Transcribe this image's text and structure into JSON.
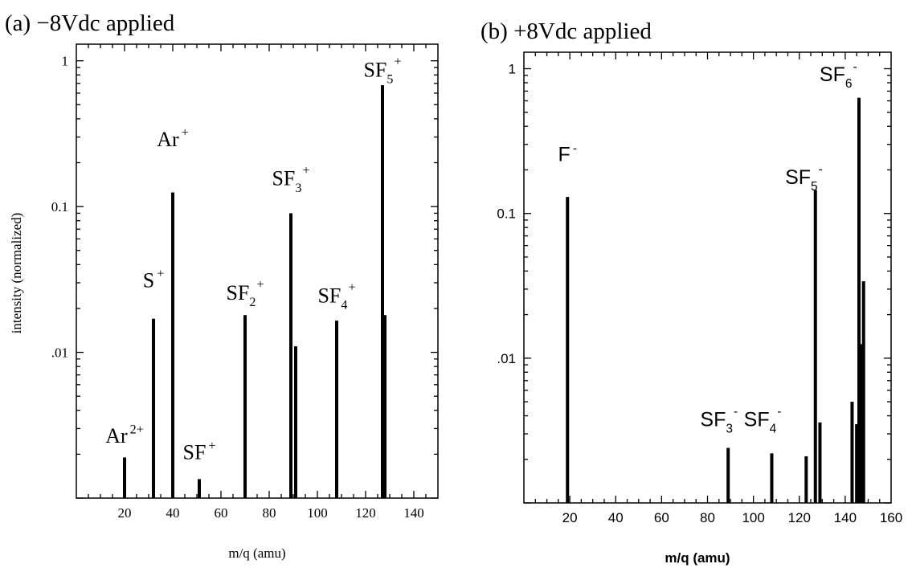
{
  "chart_data": [
    {
      "type": "bar",
      "title": "(a) −8Vdc applied",
      "xlabel": "m/q (amu)",
      "ylabel": "intensity (normalized)",
      "xlim": [
        0,
        150
      ],
      "ylim": [
        0.001,
        1.3
      ],
      "yscale": "log",
      "x_ticks": [
        "20",
        "40",
        "60",
        "80",
        "100",
        "120",
        "140"
      ],
      "y_ticks": [
        {
          "v": 1,
          "label": "1"
        },
        {
          "v": 0.1,
          "label": "0.1"
        },
        {
          "v": 0.01,
          "label": ".01"
        }
      ],
      "x": [
        20,
        32,
        40,
        51,
        70,
        89,
        91,
        108,
        127,
        128
      ],
      "values": [
        0.0019,
        0.017,
        0.125,
        0.00135,
        0.018,
        0.09,
        0.011,
        0.0165,
        0.68,
        0.018
      ],
      "annotations": [
        {
          "text": "Ar",
          "sup": "2+",
          "x": 20,
          "y": 0.0024
        },
        {
          "text": "S",
          "sup": "+",
          "x": 32,
          "y": 0.028
        },
        {
          "text": "Ar",
          "sup": "+",
          "x": 40,
          "y": 0.26
        },
        {
          "text": "SF",
          "sup": "+",
          "x": 51,
          "y": 0.00185
        },
        {
          "text": "SF",
          "sub": "2",
          "sup": "+",
          "x": 70,
          "y": 0.023
        },
        {
          "text": "SF",
          "sub": "3",
          "sup": "+",
          "x": 89,
          "y": 0.14
        },
        {
          "text": "SF",
          "sub": "4",
          "sup": "+",
          "x": 108,
          "y": 0.022
        },
        {
          "text": "SF",
          "sub": "5",
          "sup": "+",
          "x": 127,
          "y": 0.78
        }
      ]
    },
    {
      "type": "bar",
      "title": "(b) +8Vdc applied",
      "xlabel": "m/q (amu)",
      "ylabel": "",
      "xlim": [
        0,
        160
      ],
      "ylim": [
        0.001,
        1.3
      ],
      "yscale": "log",
      "x_ticks": [
        "20",
        "40",
        "60",
        "80",
        "100",
        "120",
        "140",
        "160"
      ],
      "y_ticks": [
        {
          "v": 1,
          "label": "1"
        },
        {
          "v": 0.1,
          "label": "0.1"
        },
        {
          "v": 0.01,
          "label": ".01"
        }
      ],
      "x": [
        19,
        89,
        108,
        123,
        127,
        129,
        143,
        145,
        146,
        147,
        148
      ],
      "values": [
        0.13,
        0.0024,
        0.0022,
        0.0021,
        0.145,
        0.0036,
        0.005,
        0.0035,
        0.63,
        0.0125,
        0.034
      ],
      "annotations": [
        {
          "text": "F",
          "sup": "-",
          "x": 19,
          "y": 0.23
        },
        {
          "text": "SF",
          "sub": "3",
          "sup": "-",
          "x": 85,
          "y": 0.0034
        },
        {
          "text": "SF",
          "sub": "4",
          "sup": "-",
          "x": 104,
          "y": 0.0034
        },
        {
          "text": "SF",
          "sub": "5",
          "sup": "-",
          "x": 122,
          "y": 0.16
        },
        {
          "text": "SF",
          "sub": "6",
          "sup": "-",
          "x": 137,
          "y": 0.82
        }
      ]
    }
  ]
}
